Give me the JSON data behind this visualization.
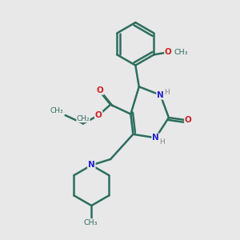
{
  "background_color": "#e8e8e8",
  "bond_color": "#2d6e5e",
  "bond_width": 1.8,
  "n_color": "#2222cc",
  "o_color": "#cc2222",
  "h_color": "#888888",
  "c_color": "#2d6e5e",
  "figsize": [
    3.0,
    3.0
  ],
  "dpi": 100,
  "xlim": [
    0,
    10
  ],
  "ylim": [
    0,
    10
  ]
}
